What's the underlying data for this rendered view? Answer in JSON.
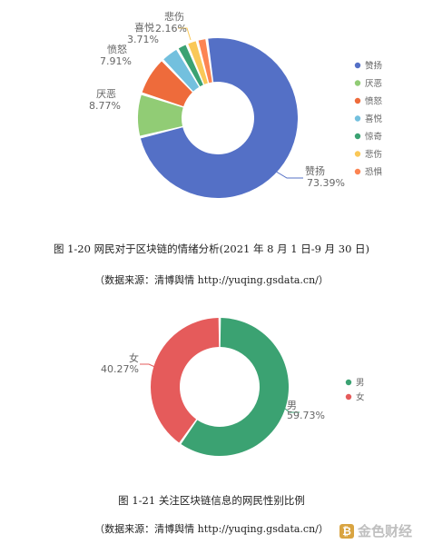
{
  "chart_data": [
    {
      "type": "pie",
      "title": "",
      "slices": [
        {
          "label": "赞扬",
          "value": 73.39,
          "value_label": "73.39%",
          "color": "#5470c6"
        },
        {
          "label": "厌恶",
          "value": 8.77,
          "value_label": "8.77%",
          "color": "#91cc75"
        },
        {
          "label": "愤怒",
          "value": 7.91,
          "value_label": "7.91%",
          "color": "#ee6b3b"
        },
        {
          "label": "喜悦",
          "value": 3.71,
          "value_label": "3.71%",
          "color": "#73c0de"
        },
        {
          "label": "惊奇",
          "value": 2.1,
          "value_label": "",
          "color": "#3ba272"
        },
        {
          "label": "悲伤",
          "value": 2.16,
          "value_label": "2.16%",
          "color": "#fac858"
        },
        {
          "label": "恐惧",
          "value": 1.96,
          "value_label": "",
          "color": "#fc8452"
        }
      ],
      "legend": [
        "赞扬",
        "厌恶",
        "愤怒",
        "喜悦",
        "惊奇",
        "悲伤",
        "恐惧"
      ],
      "legend_position": "right"
    },
    {
      "type": "pie",
      "title": "",
      "slices": [
        {
          "label": "男",
          "value": 59.73,
          "value_label": "59.73%",
          "color": "#3ba272"
        },
        {
          "label": "女",
          "value": 40.27,
          "value_label": "40.27%",
          "color": "#e55b5b"
        }
      ],
      "legend": [
        "男",
        "女"
      ],
      "legend_position": "right"
    }
  ],
  "captions": {
    "fig1": "图 1-20 网民对于区块链的情绪分析(2021 年 8 月 1 日-9 月 30 日)",
    "fig1_source": "（数据来源：清博舆情  http://yuqing.gsdata.cn/）",
    "fig2": "图 1-21  关注区块链信息的网民性别比例",
    "fig2_source": "（数据来源：清博舆情  http://yuqing.gsdata.cn/）"
  },
  "watermark": "金色财经"
}
